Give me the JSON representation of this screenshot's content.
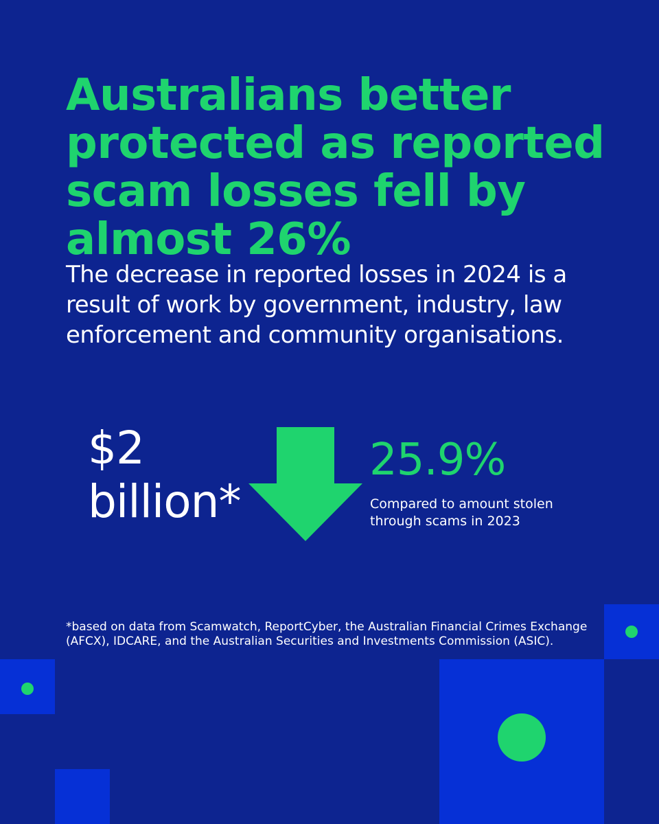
{
  "headline": "Australians better protected as reported scam losses fell by almost 26%",
  "subtext": "The decrease in reported losses in 2024 is a result of work by government, industry, law enforcement and community organisations.",
  "stat": {
    "amount_line1": "$2",
    "amount_line2": "billion*",
    "percent": "25.9%",
    "caption": "Compared to amount stolen through scams in 2023",
    "arrow_icon": "arrow-down-icon"
  },
  "footnote": "*based on data from Scamwatch, ReportCyber, the Australian Financial Crimes Exchange (AFCX), IDCARE, and the Australian Securities and Investments Commission (ASIC).",
  "colors": {
    "background": "#0d2490",
    "accent_green": "#1fd46e",
    "block_blue": "#0630d6",
    "text": "#ffffff"
  }
}
